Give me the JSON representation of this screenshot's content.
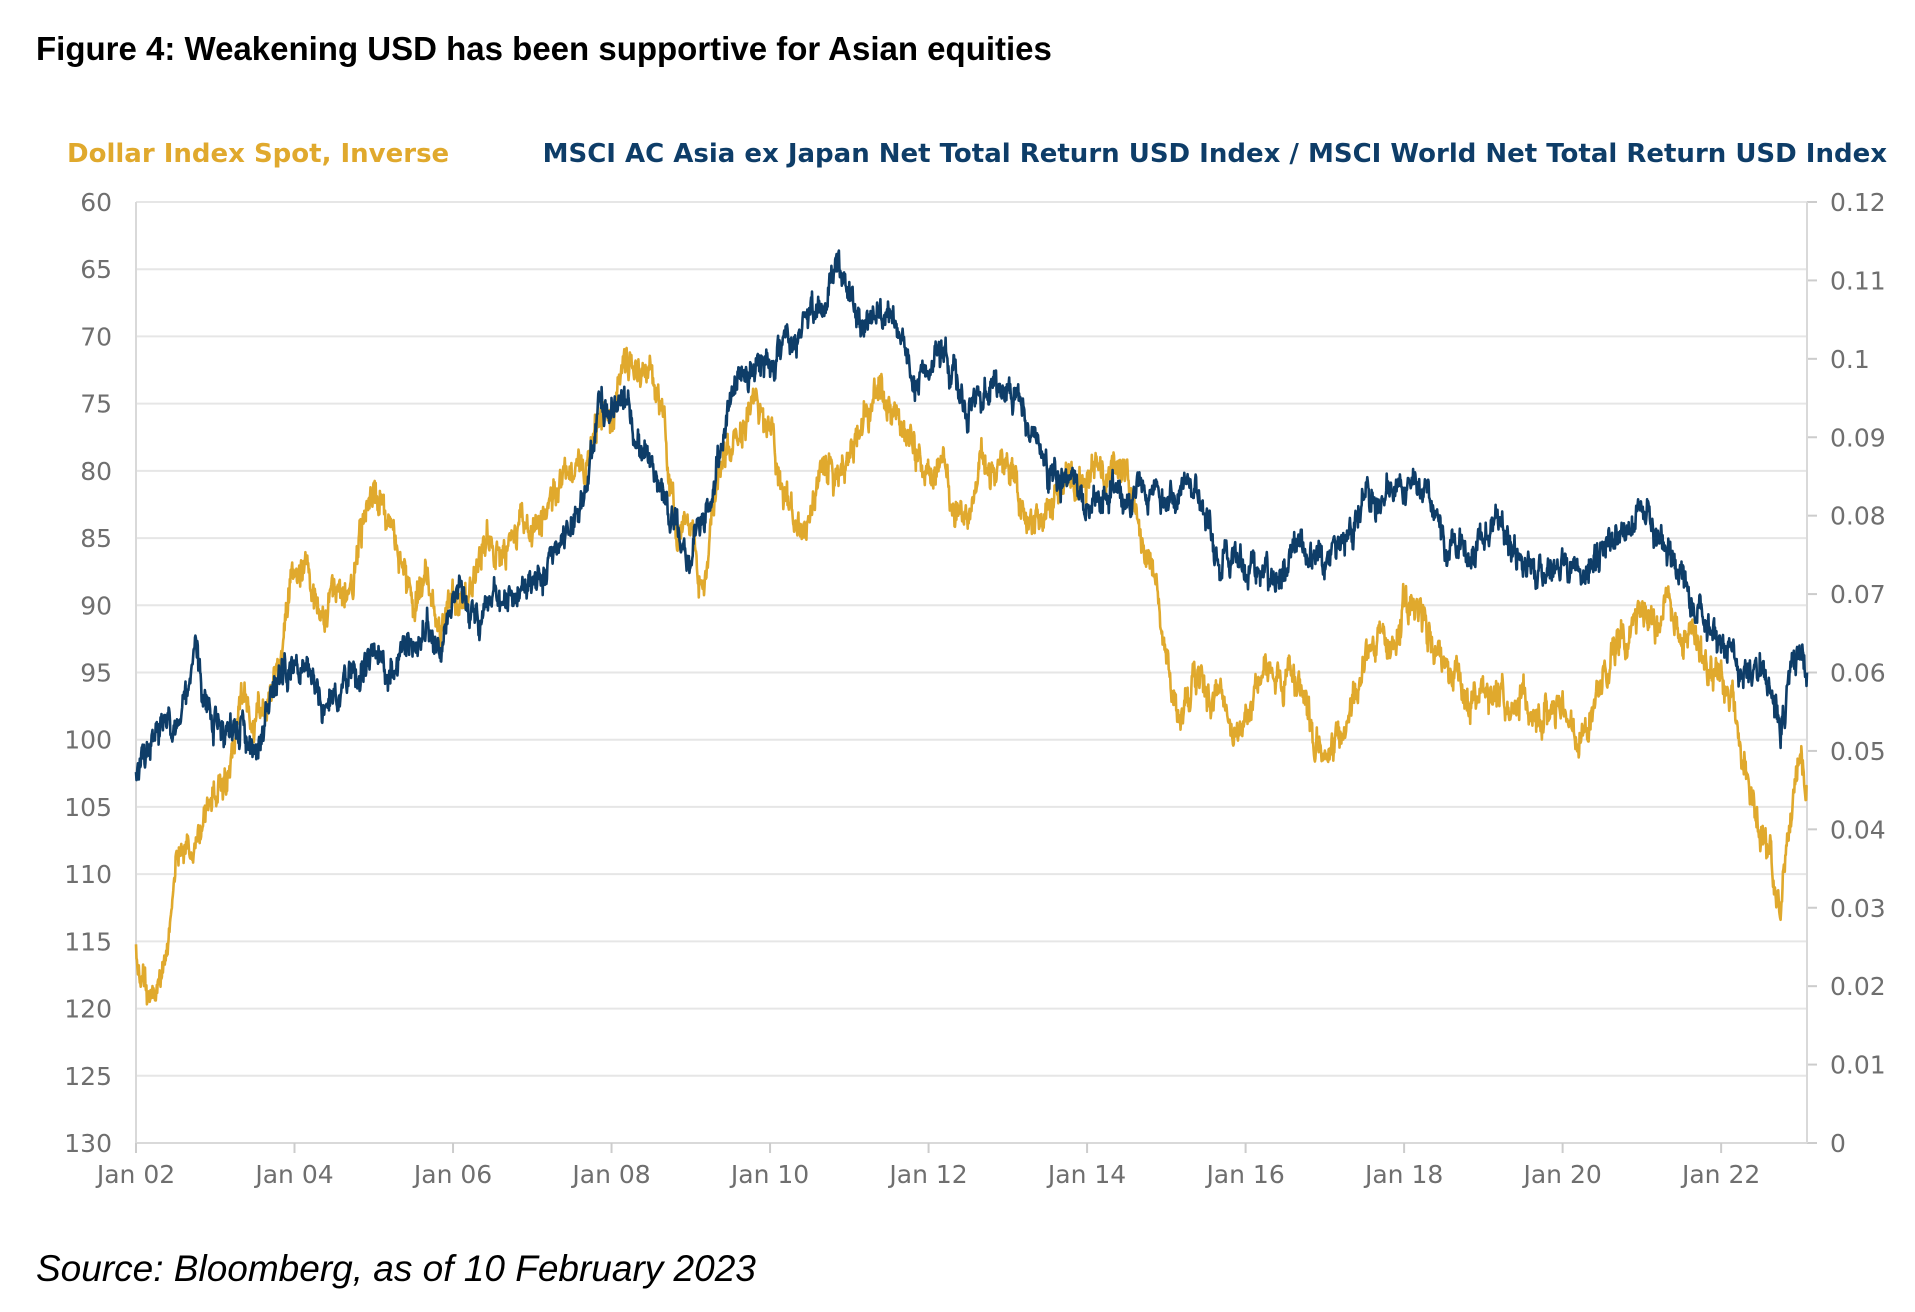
{
  "figure": {
    "title": "Figure 4: Weakening USD has been supportive for Asian equities",
    "source": "Source: Bloomberg, as of 10 February 2023"
  },
  "chart_data": {
    "type": "line",
    "title": "",
    "left_axis": {
      "label": "Dollar Index Spot, Inverse",
      "inverted": true,
      "range": [
        60,
        130
      ],
      "ticks": [
        "60",
        "65",
        "70",
        "75",
        "80",
        "85",
        "90",
        "95",
        "100",
        "105",
        "110",
        "115",
        "120",
        "125",
        "130"
      ]
    },
    "right_axis": {
      "label": "MSCI AC Asia ex Japan Net Total Return USD Index / MSCI World Net Total Return USD Index",
      "range": [
        0,
        0.12
      ],
      "ticks": [
        "0.12",
        "0.11",
        "0.1",
        "0.09",
        "0.08",
        "0.07",
        "0.06",
        "0.05",
        "0.04",
        "0.03",
        "0.02",
        "0.01",
        "0"
      ]
    },
    "x_axis": {
      "range": [
        "2002-01",
        "2023-02"
      ],
      "ticks": [
        "Jan 02",
        "Jan 04",
        "Jan 06",
        "Jan 08",
        "Jan 10",
        "Jan 12",
        "Jan 14",
        "Jan 16",
        "Jan 18",
        "Jan 20",
        "Jan 22"
      ]
    },
    "grid": true,
    "legend_position": "top",
    "series": [
      {
        "name": "Dollar Index Spot, Inverse",
        "axis": "left",
        "color": "#E0A92D",
        "points": [
          [
            "2002-01",
            116.5
          ],
          [
            "2002-03",
            119.0
          ],
          [
            "2002-05",
            117.0
          ],
          [
            "2002-07",
            110.0
          ],
          [
            "2002-09",
            107.5
          ],
          [
            "2002-11",
            106.5
          ],
          [
            "2003-01",
            103.5
          ],
          [
            "2003-03",
            102.0
          ],
          [
            "2003-05",
            96.0
          ],
          [
            "2003-07",
            98.5
          ],
          [
            "2003-09",
            96.5
          ],
          [
            "2003-11",
            93.0
          ],
          [
            "2004-01",
            87.0
          ],
          [
            "2004-03",
            88.0
          ],
          [
            "2004-05",
            91.0
          ],
          [
            "2004-07",
            89.0
          ],
          [
            "2004-09",
            89.5
          ],
          [
            "2004-11",
            85.0
          ],
          [
            "2005-01",
            82.0
          ],
          [
            "2005-03",
            83.5
          ],
          [
            "2005-05",
            86.5
          ],
          [
            "2005-07",
            89.5
          ],
          [
            "2005-09",
            88.0
          ],
          [
            "2005-11",
            91.5
          ],
          [
            "2006-01",
            90.0
          ],
          [
            "2006-03",
            90.5
          ],
          [
            "2006-05",
            86.0
          ],
          [
            "2006-07",
            85.5
          ],
          [
            "2006-09",
            86.5
          ],
          [
            "2006-11",
            83.0
          ],
          [
            "2007-01",
            84.5
          ],
          [
            "2007-03",
            83.5
          ],
          [
            "2007-05",
            82.5
          ],
          [
            "2007-07",
            80.5
          ],
          [
            "2007-09",
            79.0
          ],
          [
            "2007-11",
            75.5
          ],
          [
            "2008-01",
            76.0
          ],
          [
            "2008-03",
            72.0
          ],
          [
            "2008-05",
            73.0
          ],
          [
            "2008-07",
            72.5
          ],
          [
            "2008-09",
            76.5
          ],
          [
            "2008-11",
            86.0
          ],
          [
            "2009-01",
            84.0
          ],
          [
            "2009-03",
            88.5
          ],
          [
            "2009-05",
            81.0
          ],
          [
            "2009-07",
            79.0
          ],
          [
            "2009-09",
            77.0
          ],
          [
            "2009-11",
            75.0
          ],
          [
            "2010-01",
            78.0
          ],
          [
            "2010-03",
            80.5
          ],
          [
            "2010-05",
            85.0
          ],
          [
            "2010-07",
            82.5
          ],
          [
            "2010-09",
            79.5
          ],
          [
            "2010-11",
            80.5
          ],
          [
            "2011-01",
            79.0
          ],
          [
            "2011-03",
            76.5
          ],
          [
            "2011-05",
            74.0
          ],
          [
            "2011-07",
            74.5
          ],
          [
            "2011-09",
            77.0
          ],
          [
            "2011-11",
            79.0
          ],
          [
            "2012-01",
            80.0
          ],
          [
            "2012-03",
            79.5
          ],
          [
            "2012-05",
            82.5
          ],
          [
            "2012-07",
            83.5
          ],
          [
            "2012-09",
            80.0
          ],
          [
            "2012-11",
            80.0
          ],
          [
            "2013-01",
            79.5
          ],
          [
            "2013-03",
            82.5
          ],
          [
            "2013-05",
            83.5
          ],
          [
            "2013-07",
            84.0
          ],
          [
            "2013-09",
            80.5
          ],
          [
            "2013-11",
            81.0
          ],
          [
            "2014-01",
            80.5
          ],
          [
            "2014-03",
            79.5
          ],
          [
            "2014-05",
            80.0
          ],
          [
            "2014-07",
            80.5
          ],
          [
            "2014-09",
            84.5
          ],
          [
            "2014-11",
            87.5
          ],
          [
            "2015-01",
            94.0
          ],
          [
            "2015-03",
            99.0
          ],
          [
            "2015-05",
            95.0
          ],
          [
            "2015-07",
            96.5
          ],
          [
            "2015-09",
            96.0
          ],
          [
            "2015-11",
            99.5
          ],
          [
            "2016-01",
            99.0
          ],
          [
            "2016-03",
            95.5
          ],
          [
            "2016-05",
            94.5
          ],
          [
            "2016-07",
            96.0
          ],
          [
            "2016-09",
            95.5
          ],
          [
            "2016-11",
            100.5
          ],
          [
            "2017-01",
            101.0
          ],
          [
            "2017-03",
            100.5
          ],
          [
            "2017-05",
            98.0
          ],
          [
            "2017-07",
            94.0
          ],
          [
            "2017-09",
            92.5
          ],
          [
            "2017-11",
            93.5
          ],
          [
            "2018-01",
            89.5
          ],
          [
            "2018-03",
            90.0
          ],
          [
            "2018-05",
            93.0
          ],
          [
            "2018-07",
            94.5
          ],
          [
            "2018-09",
            95.0
          ],
          [
            "2018-11",
            96.5
          ],
          [
            "2019-01",
            96.0
          ],
          [
            "2019-03",
            96.5
          ],
          [
            "2019-05",
            97.5
          ],
          [
            "2019-07",
            97.0
          ],
          [
            "2019-09",
            98.5
          ],
          [
            "2019-11",
            98.0
          ],
          [
            "2020-01",
            97.5
          ],
          [
            "2020-03",
            100.5
          ],
          [
            "2020-05",
            99.0
          ],
          [
            "2020-07",
            95.0
          ],
          [
            "2020-09",
            93.0
          ],
          [
            "2020-11",
            92.5
          ],
          [
            "2021-01",
            90.5
          ],
          [
            "2021-03",
            92.0
          ],
          [
            "2021-05",
            90.0
          ],
          [
            "2021-07",
            92.0
          ],
          [
            "2021-09",
            93.0
          ],
          [
            "2021-11",
            95.5
          ],
          [
            "2022-01",
            95.5
          ],
          [
            "2022-03",
            98.0
          ],
          [
            "2022-05",
            103.0
          ],
          [
            "2022-07",
            106.5
          ],
          [
            "2022-09",
            110.5
          ],
          [
            "2022-10",
            112.5
          ],
          [
            "2022-11",
            107.0
          ],
          [
            "2022-12",
            104.0
          ],
          [
            "2023-01",
            102.0
          ],
          [
            "2023-02",
            103.5
          ]
        ]
      },
      {
        "name": "MSCI AC Asia ex Japan Net Total Return USD Index / MSCI World Net Total Return USD Index",
        "axis": "right",
        "color": "#0E3D68",
        "points": [
          [
            "2002-01",
            0.047
          ],
          [
            "2002-03",
            0.05
          ],
          [
            "2002-05",
            0.053
          ],
          [
            "2002-07",
            0.053
          ],
          [
            "2002-09",
            0.056
          ],
          [
            "2002-10",
            0.064
          ],
          [
            "2002-11",
            0.056
          ],
          [
            "2003-01",
            0.054
          ],
          [
            "2003-03",
            0.053
          ],
          [
            "2003-05",
            0.054
          ],
          [
            "2003-07",
            0.049
          ],
          [
            "2003-09",
            0.055
          ],
          [
            "2003-11",
            0.059
          ],
          [
            "2004-01",
            0.06
          ],
          [
            "2004-03",
            0.061
          ],
          [
            "2004-05",
            0.056
          ],
          [
            "2004-07",
            0.057
          ],
          [
            "2004-09",
            0.06
          ],
          [
            "2004-11",
            0.06
          ],
          [
            "2005-01",
            0.062
          ],
          [
            "2005-03",
            0.061
          ],
          [
            "2005-05",
            0.062
          ],
          [
            "2005-07",
            0.064
          ],
          [
            "2005-09",
            0.065
          ],
          [
            "2005-11",
            0.064
          ],
          [
            "2006-01",
            0.068
          ],
          [
            "2006-03",
            0.07
          ],
          [
            "2006-05",
            0.067
          ],
          [
            "2006-07",
            0.069
          ],
          [
            "2006-09",
            0.07
          ],
          [
            "2006-11",
            0.071
          ],
          [
            "2007-01",
            0.071
          ],
          [
            "2007-03",
            0.073
          ],
          [
            "2007-05",
            0.075
          ],
          [
            "2007-07",
            0.079
          ],
          [
            "2007-09",
            0.083
          ],
          [
            "2007-11",
            0.094
          ],
          [
            "2008-01",
            0.093
          ],
          [
            "2008-03",
            0.095
          ],
          [
            "2008-05",
            0.09
          ],
          [
            "2008-07",
            0.087
          ],
          [
            "2008-09",
            0.083
          ],
          [
            "2008-11",
            0.077
          ],
          [
            "2009-01",
            0.074
          ],
          [
            "2009-03",
            0.079
          ],
          [
            "2009-05",
            0.087
          ],
          [
            "2009-07",
            0.096
          ],
          [
            "2009-09",
            0.098
          ],
          [
            "2009-11",
            0.1
          ],
          [
            "2010-01",
            0.099
          ],
          [
            "2010-03",
            0.101
          ],
          [
            "2010-05",
            0.101
          ],
          [
            "2010-07",
            0.106
          ],
          [
            "2010-09",
            0.108
          ],
          [
            "2010-11",
            0.112
          ],
          [
            "2011-01",
            0.108
          ],
          [
            "2011-03",
            0.105
          ],
          [
            "2011-05",
            0.105
          ],
          [
            "2011-07",
            0.107
          ],
          [
            "2011-09",
            0.101
          ],
          [
            "2011-11",
            0.095
          ],
          [
            "2012-01",
            0.098
          ],
          [
            "2012-03",
            0.099
          ],
          [
            "2012-05",
            0.098
          ],
          [
            "2012-07",
            0.094
          ],
          [
            "2012-09",
            0.096
          ],
          [
            "2012-11",
            0.097
          ],
          [
            "2013-01",
            0.096
          ],
          [
            "2013-03",
            0.094
          ],
          [
            "2013-05",
            0.091
          ],
          [
            "2013-07",
            0.086
          ],
          [
            "2013-09",
            0.085
          ],
          [
            "2013-11",
            0.084
          ],
          [
            "2014-01",
            0.081
          ],
          [
            "2014-03",
            0.082
          ],
          [
            "2014-05",
            0.083
          ],
          [
            "2014-07",
            0.081
          ],
          [
            "2014-09",
            0.083
          ],
          [
            "2014-11",
            0.083
          ],
          [
            "2015-01",
            0.082
          ],
          [
            "2015-03",
            0.083
          ],
          [
            "2015-05",
            0.085
          ],
          [
            "2015-07",
            0.079
          ],
          [
            "2015-09",
            0.073
          ],
          [
            "2015-11",
            0.075
          ],
          [
            "2016-01",
            0.072
          ],
          [
            "2016-03",
            0.073
          ],
          [
            "2016-05",
            0.072
          ],
          [
            "2016-07",
            0.074
          ],
          [
            "2016-09",
            0.077
          ],
          [
            "2016-11",
            0.074
          ],
          [
            "2017-01",
            0.075
          ],
          [
            "2017-03",
            0.077
          ],
          [
            "2017-05",
            0.079
          ],
          [
            "2017-07",
            0.081
          ],
          [
            "2017-09",
            0.082
          ],
          [
            "2017-11",
            0.084
          ],
          [
            "2018-01",
            0.084
          ],
          [
            "2018-03",
            0.084
          ],
          [
            "2018-05",
            0.082
          ],
          [
            "2018-07",
            0.077
          ],
          [
            "2018-09",
            0.076
          ],
          [
            "2018-11",
            0.075
          ],
          [
            "2019-01",
            0.077
          ],
          [
            "2019-03",
            0.079
          ],
          [
            "2019-05",
            0.075
          ],
          [
            "2019-07",
            0.074
          ],
          [
            "2019-09",
            0.073
          ],
          [
            "2019-11",
            0.073
          ],
          [
            "2020-01",
            0.074
          ],
          [
            "2020-03",
            0.072
          ],
          [
            "2020-05",
            0.073
          ],
          [
            "2020-07",
            0.076
          ],
          [
            "2020-09",
            0.077
          ],
          [
            "2020-11",
            0.077
          ],
          [
            "2021-01",
            0.082
          ],
          [
            "2021-03",
            0.078
          ],
          [
            "2021-05",
            0.075
          ],
          [
            "2021-07",
            0.071
          ],
          [
            "2021-09",
            0.068
          ],
          [
            "2021-11",
            0.066
          ],
          [
            "2022-01",
            0.065
          ],
          [
            "2022-03",
            0.062
          ],
          [
            "2022-05",
            0.06
          ],
          [
            "2022-07",
            0.061
          ],
          [
            "2022-09",
            0.057
          ],
          [
            "2022-10",
            0.053
          ],
          [
            "2022-11",
            0.057
          ],
          [
            "2022-12",
            0.06
          ],
          [
            "2023-01",
            0.063
          ],
          [
            "2023-02",
            0.06
          ]
        ]
      }
    ]
  },
  "colors": {
    "usd_series": "#E0A92D",
    "asia_series": "#0E3D68",
    "grid": "#E6E6E6",
    "axis_text": "#6F6F6F"
  }
}
